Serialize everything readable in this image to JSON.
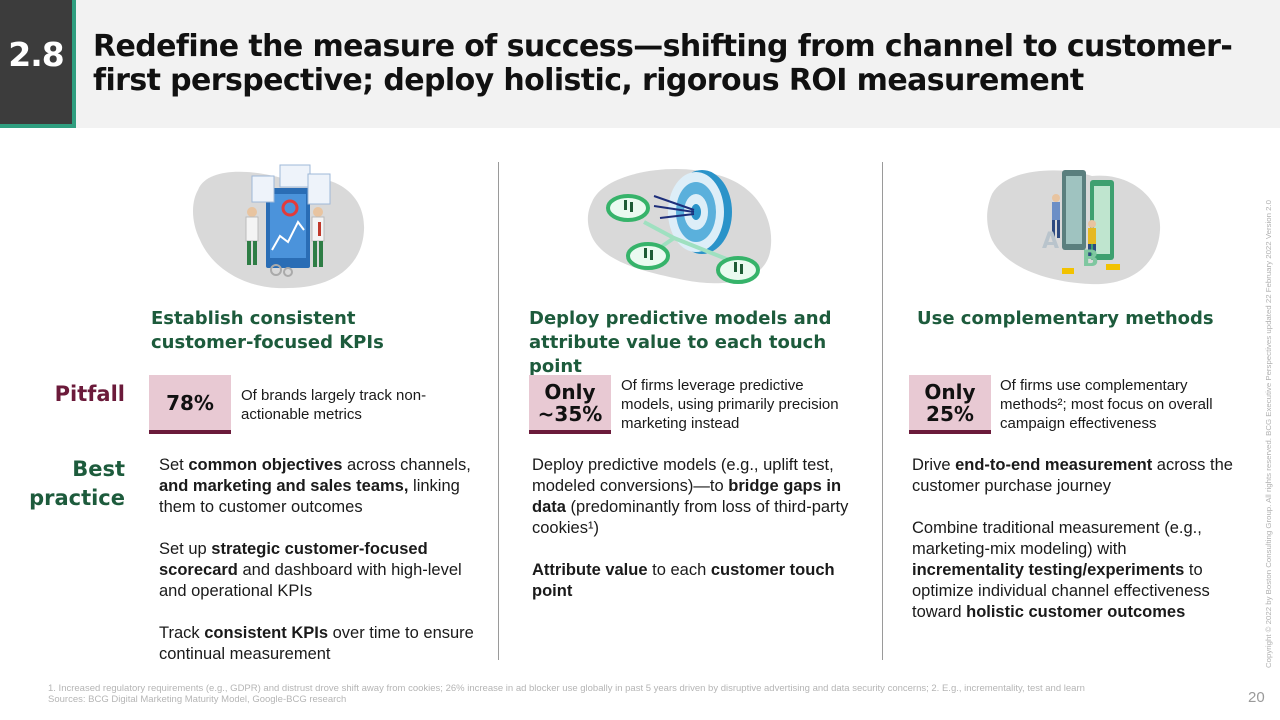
{
  "header": {
    "section_number": "2.8",
    "title": "Redefine the measure of success—shifting from channel to customer-first perspective; deploy holistic, rigorous ROI measurement"
  },
  "row_labels": {
    "pitfall": "Pitfall",
    "best_practice_line1": "Best",
    "best_practice_line2": "practice"
  },
  "columns": [
    {
      "heading_line1": "Establish consistent",
      "heading_line2": "customer-focused KPIs",
      "stat_line1": "",
      "stat_line2": "78%",
      "stat_desc": "Of brands largely track non-actionable metrics",
      "illustration": "team-dashboard-illustration",
      "best_practices": [
        [
          {
            "t": "Set ",
            "b": false
          },
          {
            "t": "common objectives",
            "b": true
          },
          {
            "t": " across channels, ",
            "b": false
          },
          {
            "t": "and marketing and sales teams,",
            "b": true
          },
          {
            "t": " linking them to customer outcomes",
            "b": false
          }
        ],
        [
          {
            "t": "Set up ",
            "b": false
          },
          {
            "t": "strategic customer-focused scorecard",
            "b": true
          },
          {
            "t": " and dashboard with high-level and operational KPIs",
            "b": false
          }
        ],
        [
          {
            "t": "Track ",
            "b": false
          },
          {
            "t": "consistent KPIs",
            "b": true
          },
          {
            "t": " over time to ensure continual measurement",
            "b": false
          }
        ]
      ]
    },
    {
      "heading_line1": "Deploy predictive models and",
      "heading_line2": "attribute value to each touch point",
      "stat_line1": "Only",
      "stat_line2": "~35%",
      "stat_desc": "Of firms leverage predictive models, using primarily precision marketing instead",
      "illustration": "target-network-illustration",
      "best_practices": [
        [
          {
            "t": "Deploy predictive models (e.g., uplift test, modeled conversions)—to ",
            "b": false
          },
          {
            "t": "bridge gaps in data",
            "b": true
          },
          {
            "t": " (predominantly from loss of third-party cookies¹)",
            "b": false
          }
        ],
        [
          {
            "t": "Attribute value",
            "b": true
          },
          {
            "t": " to each ",
            "b": false
          },
          {
            "t": "customer touch point",
            "b": true
          }
        ]
      ]
    },
    {
      "heading_line1": "Use complementary methods",
      "heading_line2": "",
      "stat_line1": "Only",
      "stat_line2": "25%",
      "stat_desc": "Of firms use complementary methods²; most focus on overall campaign effectiveness",
      "illustration": "ab-testing-illustration",
      "best_practices": [
        [
          {
            "t": "Drive ",
            "b": false
          },
          {
            "t": "end-to-end measurement",
            "b": true
          },
          {
            "t": " across the customer purchase journey",
            "b": false
          }
        ],
        [
          {
            "t": "Combine traditional measurement (e.g., marketing-mix modeling) with ",
            "b": false
          },
          {
            "t": "incrementality testing/experiments",
            "b": true
          },
          {
            "t": " to optimize individual channel effectiveness toward ",
            "b": false
          },
          {
            "t": "holistic customer outcomes",
            "b": true
          }
        ]
      ]
    }
  ],
  "footnote_1": "1. Increased regulatory requirements (e.g., GDPR) and distrust drove shift away from cookies; 26% increase in ad blocker use globally in past 5 years driven by disruptive advertising and data security concerns; 2. E.g., incrementality, test and learn",
  "sources": "Sources: BCG Digital Marketing Maturity Model, Google-BCG research",
  "page_number": "20",
  "copyright": "Copyright © 2022 by Boston Consulting Group. All rights reserved. BCG Executive Perspectives updated 22 February 2022 Version 2.0",
  "colors": {
    "accent_green": "#1d5b3c",
    "pitfall_maroon": "#6b1a3a",
    "stat_fill": "#e8c9d3",
    "header_band": "#f2f2f2",
    "teal_bar": "#2f9e7f"
  }
}
